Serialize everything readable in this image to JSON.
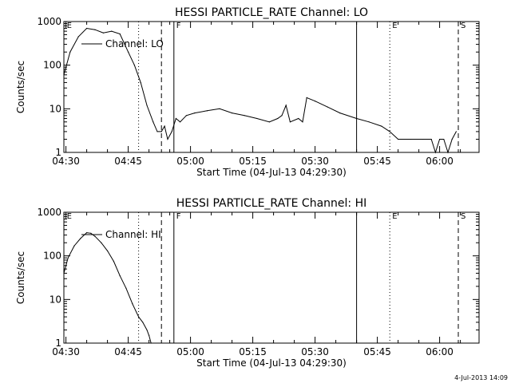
{
  "chart_data": [
    {
      "type": "line",
      "title": "HESSI PARTICLE_RATE Channel: LO",
      "xlabel": "Start Time (04-Jul-13 04:29:30)",
      "ylabel": "Counts/sec",
      "yscale": "log",
      "ylim": [
        1,
        1000
      ],
      "xlim": [
        "04:29:30",
        "06:09:30"
      ],
      "x_ticks": [
        "04:30",
        "04:45",
        "05:00",
        "05:15",
        "05:30",
        "05:45",
        "06:00"
      ],
      "y_ticks": [
        "1",
        "10",
        "100",
        "1000"
      ],
      "legend": "Channel: LO",
      "markers": [
        {
          "label": "E",
          "time": "04:30:00",
          "style": "text"
        },
        {
          "label": "",
          "time": "04:47:30",
          "style": "dotted"
        },
        {
          "label": "",
          "time": "04:53:00",
          "style": "dashed"
        },
        {
          "label": "F",
          "time": "04:56:00",
          "style": "solid"
        },
        {
          "label": "",
          "time": "05:40:00",
          "style": "solid"
        },
        {
          "label": "E",
          "time": "05:48:00",
          "style": "dotted"
        },
        {
          "label": "S",
          "time": "06:04:30",
          "style": "dashed"
        }
      ],
      "x": [
        "04:29:30",
        "04:31:00",
        "04:33:00",
        "04:35:00",
        "04:37:00",
        "04:39:00",
        "04:41:00",
        "04:43:00",
        "04:45:00",
        "04:46:30",
        "04:48:00",
        "04:49:30",
        "04:51:00",
        "04:52:00",
        "04:53:00",
        "04:53:45",
        "04:54:30",
        "04:55:30",
        "04:56:30",
        "04:57:30",
        "04:59:00",
        "05:01:00",
        "05:04:00",
        "05:07:00",
        "05:10:00",
        "05:13:00",
        "05:16:00",
        "05:19:00",
        "05:21:00",
        "05:22:00",
        "05:23:00",
        "05:24:00",
        "05:26:00",
        "05:27:00",
        "05:28:00",
        "05:30:00",
        "05:33:00",
        "05:36:00",
        "05:40:00",
        "05:43:00",
        "05:46:00",
        "05:48:00",
        "05:50:00",
        "05:53:00",
        "05:56:00",
        "05:58:00",
        "05:59:00",
        "06:00:00",
        "06:01:00",
        "06:02:00",
        "06:03:00",
        "06:04:00"
      ],
      "values": [
        60,
        200,
        450,
        700,
        650,
        550,
        600,
        520,
        200,
        100,
        40,
        12,
        5,
        3,
        3,
        4,
        2,
        3,
        6,
        5,
        7,
        8,
        9,
        10,
        8,
        7,
        6,
        5,
        6,
        7,
        12,
        5,
        6,
        5,
        18,
        15,
        11,
        8,
        6,
        5,
        4,
        3,
        2,
        2,
        2,
        2,
        1,
        2,
        2,
        1,
        2,
        3
      ]
    },
    {
      "type": "line",
      "title": "HESSI PARTICLE_RATE Channel: HI",
      "xlabel": "Start Time (04-Jul-13 04:29:30)",
      "ylabel": "Counts/sec",
      "yscale": "log",
      "ylim": [
        1,
        1000
      ],
      "xlim": [
        "04:29:30",
        "06:09:30"
      ],
      "x_ticks": [
        "04:30",
        "04:45",
        "05:00",
        "05:15",
        "05:30",
        "05:45",
        "06:00"
      ],
      "y_ticks": [
        "1",
        "10",
        "100",
        "1000"
      ],
      "legend": "Channel: HI",
      "markers": [
        {
          "label": "E",
          "time": "04:30:00",
          "style": "text"
        },
        {
          "label": "",
          "time": "04:47:30",
          "style": "dotted"
        },
        {
          "label": "",
          "time": "04:53:00",
          "style": "dashed"
        },
        {
          "label": "F",
          "time": "04:56:00",
          "style": "solid"
        },
        {
          "label": "",
          "time": "05:40:00",
          "style": "solid"
        },
        {
          "label": "E",
          "time": "05:48:00",
          "style": "dotted"
        },
        {
          "label": "S",
          "time": "06:04:30",
          "style": "dashed"
        }
      ],
      "x": [
        "04:29:30",
        "04:30:30",
        "04:32:00",
        "04:33:30",
        "04:35:00",
        "04:36:00",
        "04:37:00",
        "04:38:30",
        "04:40:00",
        "04:41:30",
        "04:43:00",
        "04:44:30",
        "04:46:00",
        "04:47:30",
        "04:48:30",
        "04:49:30",
        "04:50:00",
        "04:50:30"
      ],
      "values": [
        40,
        90,
        170,
        250,
        340,
        330,
        280,
        200,
        130,
        75,
        35,
        18,
        8,
        4,
        3,
        2,
        1.5,
        1
      ]
    }
  ],
  "timestamp": "4-Jul-2013 14:09"
}
